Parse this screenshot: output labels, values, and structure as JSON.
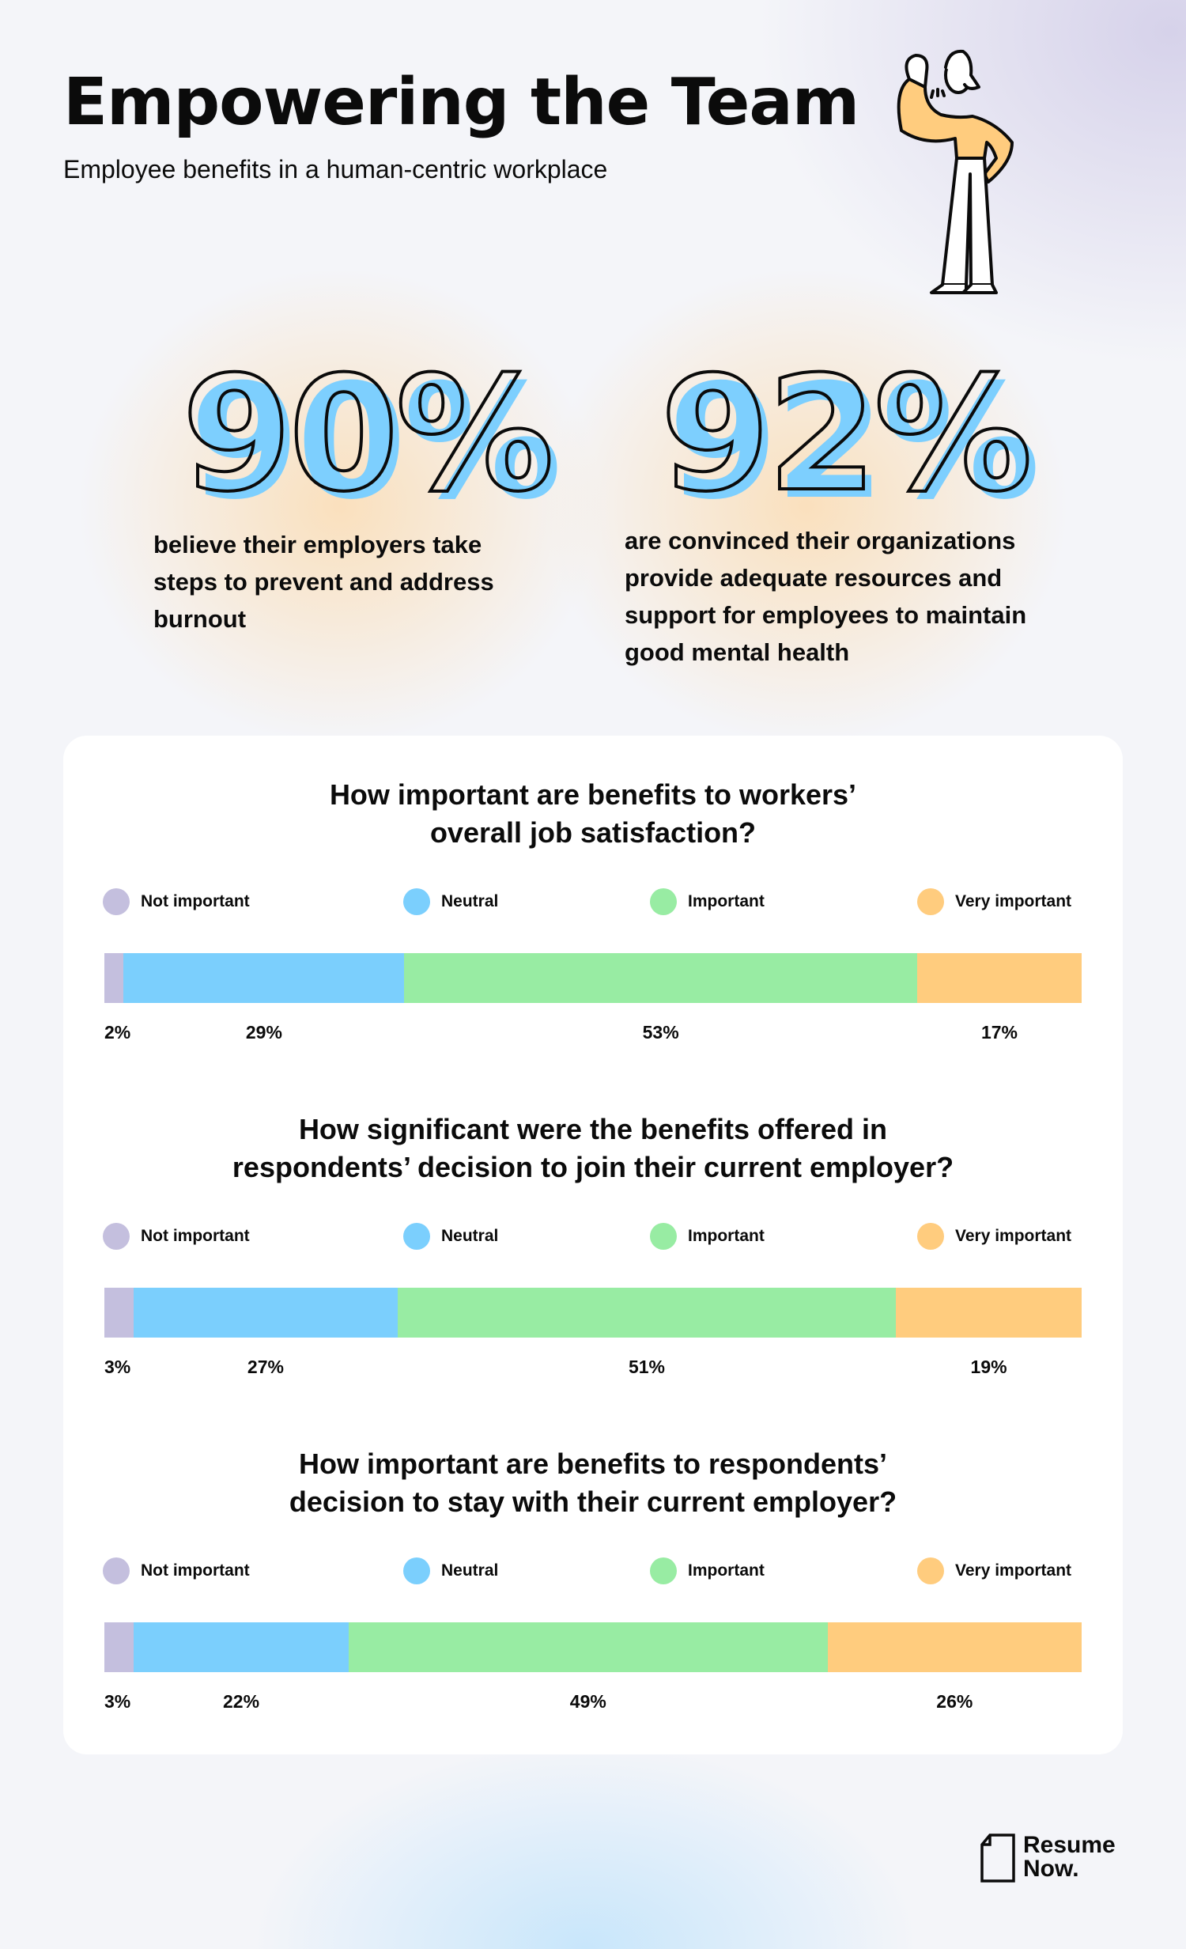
{
  "header": {
    "title": "Empowering the Team",
    "subtitle": "Employee benefits in a human-centric workplace"
  },
  "stats": [
    {
      "value": "90%",
      "text": "believe their employers take steps to prevent and address burnout"
    },
    {
      "value": "92%",
      "text": "are convinced their organizations provide adequate resources and support for employees to maintain good mental health"
    }
  ],
  "colors": {
    "not_important": "#c4bfde",
    "neutral": "#7bcffd",
    "important": "#98eca3",
    "very_important": "#ffcc7e",
    "number_shadow": "#7dcffe"
  },
  "legend": [
    "Not important",
    "Neutral",
    "Important",
    "Very important"
  ],
  "chart_data": [
    {
      "type": "bar",
      "stacked": true,
      "orientation": "horizontal",
      "title": "How important are benefits to workers’ overall job satisfaction?",
      "categories": [
        "Not important",
        "Neutral",
        "Important",
        "Very important"
      ],
      "values": [
        2,
        29,
        53,
        17
      ],
      "labels": [
        "2%",
        "29%",
        "53%",
        "17%"
      ]
    },
    {
      "type": "bar",
      "stacked": true,
      "orientation": "horizontal",
      "title": "How significant were the benefits offered in respondents’ decision to join their current employer?",
      "categories": [
        "Not important",
        "Neutral",
        "Important",
        "Very important"
      ],
      "values": [
        3,
        27,
        51,
        19
      ],
      "labels": [
        "3%",
        "27%",
        "51%",
        "19%"
      ]
    },
    {
      "type": "bar",
      "stacked": true,
      "orientation": "horizontal",
      "title": "How important are benefits to respondents’ decision to stay with their current employer?",
      "categories": [
        "Not important",
        "Neutral",
        "Important",
        "Very important"
      ],
      "values": [
        3,
        22,
        49,
        26
      ],
      "labels": [
        "3%",
        "22%",
        "49%",
        "26%"
      ]
    }
  ],
  "logo": {
    "line1": "Resume",
    "line2": "Now."
  }
}
